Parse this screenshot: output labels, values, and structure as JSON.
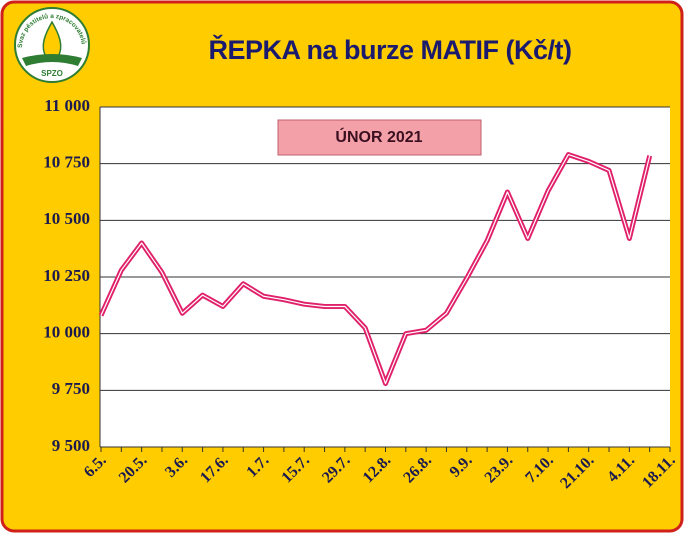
{
  "logo": {
    "text": "Svaz pěstitelů a zpracovatelů olejnin",
    "abbr": "SPZO"
  },
  "chart_data": {
    "type": "line",
    "title": "ŘEPKA na burze MATIF (Kč/t)",
    "annotation": "ÚNOR 2021",
    "categories": [
      "6.5.",
      null,
      "20.5.",
      null,
      "3.6.",
      null,
      "17.6.",
      null,
      "1.7.",
      null,
      "15.7.",
      null,
      "29.7.",
      null,
      "12.8.",
      null,
      "26.8.",
      null,
      "9.9.",
      null,
      "23.9.",
      null,
      "7.10.",
      null,
      "21.10.",
      null,
      "4.11.",
      null,
      "18.11."
    ],
    "series": [
      {
        "name": "ŘEPKA",
        "color": "#e0206a",
        "values": [
          10080,
          10280,
          10400,
          10270,
          10090,
          10170,
          10120,
          10220,
          10165,
          10150,
          10130,
          10120,
          10120,
          10025,
          9780,
          10000,
          10015,
          10090,
          10245,
          10410,
          10625,
          10420,
          10630,
          10790,
          10760,
          10720,
          10420,
          10785,
          null
        ]
      }
    ],
    "ylim": [
      9500,
      11000
    ],
    "yticks": [
      {
        "value": 9500,
        "label": "9 500"
      },
      {
        "value": 9750,
        "label": "9 750"
      },
      {
        "value": 10000,
        "label": "10 000"
      },
      {
        "value": 10250,
        "label": "10 250"
      },
      {
        "value": 10500,
        "label": "10 500"
      },
      {
        "value": 10750,
        "label": "10 750"
      },
      {
        "value": 11000,
        "label": "11 000"
      }
    ],
    "grid": true
  }
}
